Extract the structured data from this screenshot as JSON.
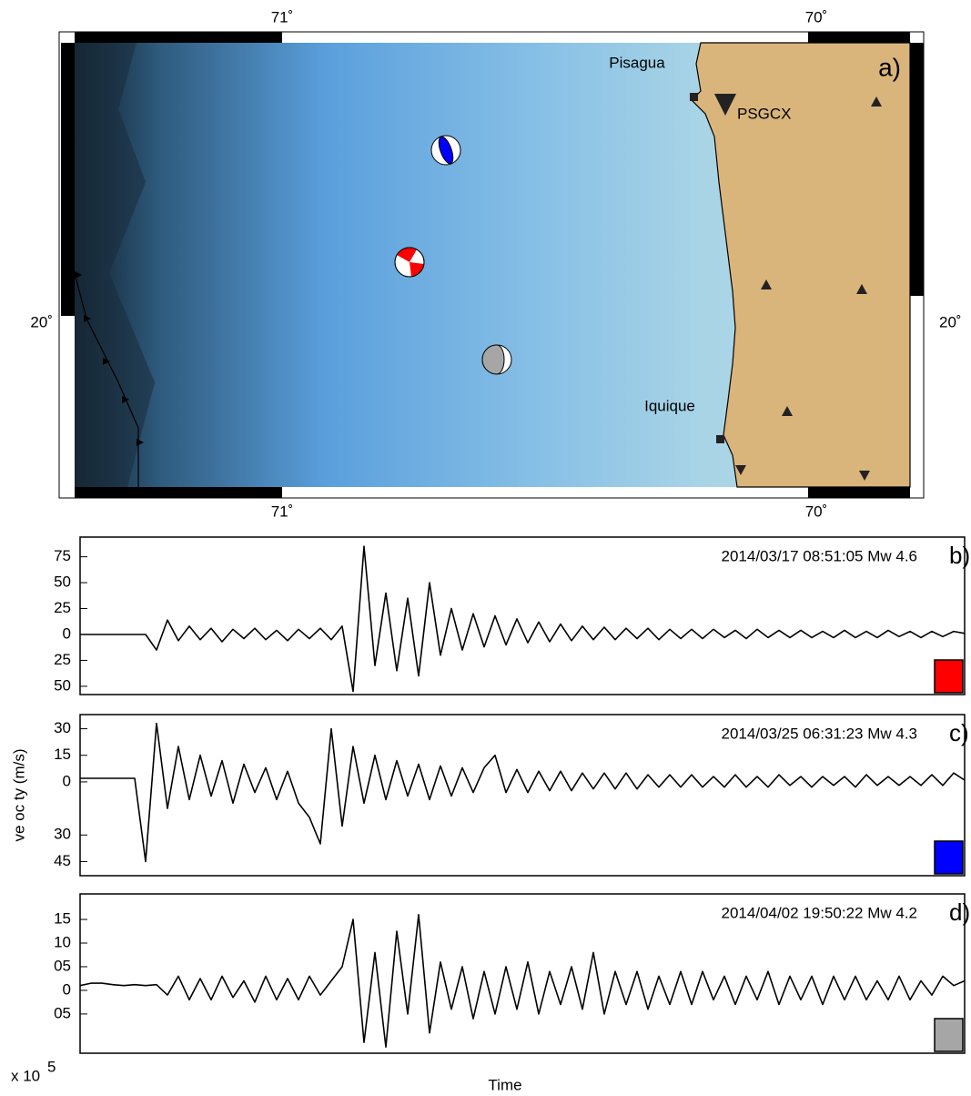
{
  "map": {
    "panel_label": "a)",
    "lon_labels_top": [
      "71˚",
      "70˚"
    ],
    "lon_labels_bottom": [
      "71˚",
      "70˚"
    ],
    "lat_label_left": "20˚",
    "lat_label_right": "20˚",
    "places": [
      "Pisagua",
      "Iquique"
    ],
    "station": "PSGCX"
  },
  "chart_data": [
    {
      "type": "line",
      "annotation": "2014/03/17 08:51:05 Mw 4.6",
      "panel_label": "b)",
      "event_color": "#ff0000",
      "x": [
        0,
        0.08,
        0.16,
        0.24,
        0.32,
        0.4,
        0.48,
        0.56,
        0.64,
        0.72,
        0.8,
        0.88,
        0.96,
        1.04,
        1.12,
        1.2,
        1.28,
        1.36,
        1.44,
        1.52,
        1.6,
        1.68,
        1.76,
        1.84,
        1.92,
        2,
        2.08,
        2.16,
        2.24,
        2.32,
        2.4,
        2.48,
        2.56,
        2.64,
        2.72,
        2.8,
        2.88,
        2.96,
        3.04,
        3.12,
        3.2,
        3.28,
        3.36,
        3.44,
        3.52,
        3.6,
        3.68,
        3.76,
        3.84,
        3.92,
        4,
        4.08,
        4.16,
        4.24,
        4.32,
        4.4,
        4.48,
        4.56,
        4.64,
        4.72,
        4.8,
        4.88,
        4.96,
        5.04,
        5.12,
        5.2,
        5.28,
        5.36,
        5.44,
        5.52,
        5.6,
        5.68,
        5.76,
        5.84,
        5.92,
        6,
        6.08,
        6.16,
        6.24,
        6.32,
        6.4,
        6.48
      ],
      "xlim": [
        0,
        6.48
      ],
      "series": [
        {
          "color": "#000000",
          "values": [
            0,
            0,
            0,
            0,
            0,
            0,
            0,
            -15,
            14,
            -6,
            8,
            -5,
            6,
            -7,
            5,
            -4,
            6,
            -5,
            4,
            -6,
            5,
            -4,
            6,
            -5,
            8,
            -55,
            85,
            -30,
            40,
            -35,
            35,
            -40,
            50,
            -20,
            25,
            -15,
            20,
            -12,
            18,
            -10,
            15,
            -8,
            12,
            -7,
            10,
            -6,
            8,
            -5,
            7,
            -5,
            6,
            -4,
            6,
            -5,
            5,
            -4,
            5,
            -4,
            5,
            -3,
            4,
            -4,
            5,
            -3,
            4,
            -3,
            4,
            -3,
            3,
            -3,
            4,
            -3,
            3,
            -3,
            4,
            -2,
            3,
            -3,
            3,
            -2,
            3,
            1
          ]
        }
      ],
      "ylim": [
        -58,
        94
      ],
      "yticks": [
        75,
        50,
        25,
        0,
        {
          "value": -25,
          "label": "25"
        },
        {
          "value": -50,
          "label": "50"
        }
      ]
    },
    {
      "type": "line",
      "annotation": "2014/03/25 06:31:23 Mw 4.3",
      "panel_label": "c)",
      "event_color": "#0000ff",
      "ylabel": "ve oc ty (m/s)",
      "x": [
        0,
        0.08,
        0.16,
        0.24,
        0.32,
        0.4,
        0.48,
        0.56,
        0.64,
        0.72,
        0.8,
        0.88,
        0.96,
        1.04,
        1.12,
        1.2,
        1.28,
        1.36,
        1.44,
        1.52,
        1.6,
        1.68,
        1.76,
        1.84,
        1.92,
        2,
        2.08,
        2.16,
        2.24,
        2.32,
        2.4,
        2.48,
        2.56,
        2.64,
        2.72,
        2.8,
        2.88,
        2.96,
        3.04,
        3.12,
        3.2,
        3.28,
        3.36,
        3.44,
        3.52,
        3.6,
        3.68,
        3.76,
        3.84,
        3.92,
        4,
        4.08,
        4.16,
        4.24,
        4.32,
        4.4,
        4.48,
        4.56,
        4.64,
        4.72,
        4.8,
        4.88,
        4.96,
        5.04,
        5.12,
        5.2,
        5.28,
        5.36,
        5.44,
        5.52,
        5.6,
        5.68,
        5.76,
        5.84,
        5.92,
        6,
        6.08,
        6.16,
        6.24,
        6.32,
        6.4,
        6.48
      ],
      "xlim": [
        0,
        6.48
      ],
      "series": [
        {
          "color": "#000000",
          "values": [
            2,
            2,
            2,
            2,
            2,
            2,
            -45,
            33,
            -15,
            20,
            -10,
            15,
            -8,
            12,
            -12,
            10,
            -6,
            8,
            -10,
            6,
            -12,
            -20,
            -35,
            30,
            -25,
            20,
            -12,
            15,
            -10,
            12,
            -8,
            10,
            -10,
            9,
            -8,
            8,
            -6,
            8,
            15,
            -6,
            7,
            -6,
            6,
            -5,
            6,
            -5,
            5,
            -4,
            5,
            -4,
            5,
            -4,
            4,
            -3,
            4,
            -3,
            4,
            -3,
            3,
            -3,
            4,
            -3,
            3,
            -3,
            4,
            -2,
            3,
            -3,
            3,
            -2,
            3,
            -3,
            4,
            -2,
            3,
            -2,
            3,
            -2,
            4,
            -2,
            5,
            1
          ]
        }
      ],
      "ylim": [
        -53,
        38
      ],
      "yticks": [
        30,
        15,
        0,
        {
          "value": -30,
          "label": "30"
        },
        {
          "value": -45,
          "label": "45"
        }
      ]
    },
    {
      "type": "line",
      "annotation": "2014/04/02 19:50:22 Mw 4.2",
      "panel_label": "d)",
      "event_color": "#a6a6a6",
      "xlabel": "Time",
      "multiplier": {
        "base": "x 10",
        "exponent": "5"
      },
      "x": [
        0,
        0.08,
        0.16,
        0.24,
        0.32,
        0.4,
        0.48,
        0.56,
        0.64,
        0.72,
        0.8,
        0.88,
        0.96,
        1.04,
        1.12,
        1.2,
        1.28,
        1.36,
        1.44,
        1.52,
        1.6,
        1.68,
        1.76,
        1.84,
        1.92,
        2,
        2.08,
        2.16,
        2.24,
        2.32,
        2.4,
        2.48,
        2.56,
        2.64,
        2.72,
        2.8,
        2.88,
        2.96,
        3.04,
        3.12,
        3.2,
        3.28,
        3.36,
        3.44,
        3.52,
        3.6,
        3.68,
        3.76,
        3.84,
        3.92,
        4,
        4.08,
        4.16,
        4.24,
        4.32,
        4.4,
        4.48,
        4.56,
        4.64,
        4.72,
        4.8,
        4.88,
        4.96,
        5.04,
        5.12,
        5.2,
        5.28,
        5.36,
        5.44,
        5.52,
        5.6,
        5.68,
        5.76,
        5.84,
        5.92,
        6,
        6.08,
        6.16,
        6.24,
        6.32,
        6.4,
        6.48
      ],
      "xlim": [
        0,
        6.48
      ],
      "series": [
        {
          "color": "#000000",
          "values": [
            1,
            1.5,
            1.5,
            1.2,
            1,
            1.2,
            1,
            1.2,
            -1,
            3,
            -2,
            2.5,
            -2,
            3,
            -1.5,
            2,
            -2.5,
            3,
            -2,
            2.5,
            -2,
            3,
            -1,
            2,
            5,
            15,
            -11,
            8,
            -12,
            12.5,
            -5,
            16,
            -9,
            6,
            -4,
            5,
            -6,
            4,
            -5,
            5,
            -4,
            6,
            -5,
            4,
            -3,
            5,
            -4,
            8,
            -5,
            4,
            -3,
            4,
            -4,
            3,
            -3,
            4,
            -3,
            4,
            -2,
            3,
            -3,
            3,
            -2,
            4,
            -3,
            3,
            -2,
            3,
            -3,
            3,
            -2,
            3,
            -2,
            2,
            -2,
            3,
            -2,
            2,
            -1,
            3,
            1,
            2
          ]
        }
      ],
      "ylim": [
        -13.3,
        20.4
      ],
      "yticks": [
        15,
        10,
        {
          "value": 5,
          "label": "05"
        },
        0,
        {
          "value": -5,
          "label": "05"
        }
      ]
    }
  ]
}
